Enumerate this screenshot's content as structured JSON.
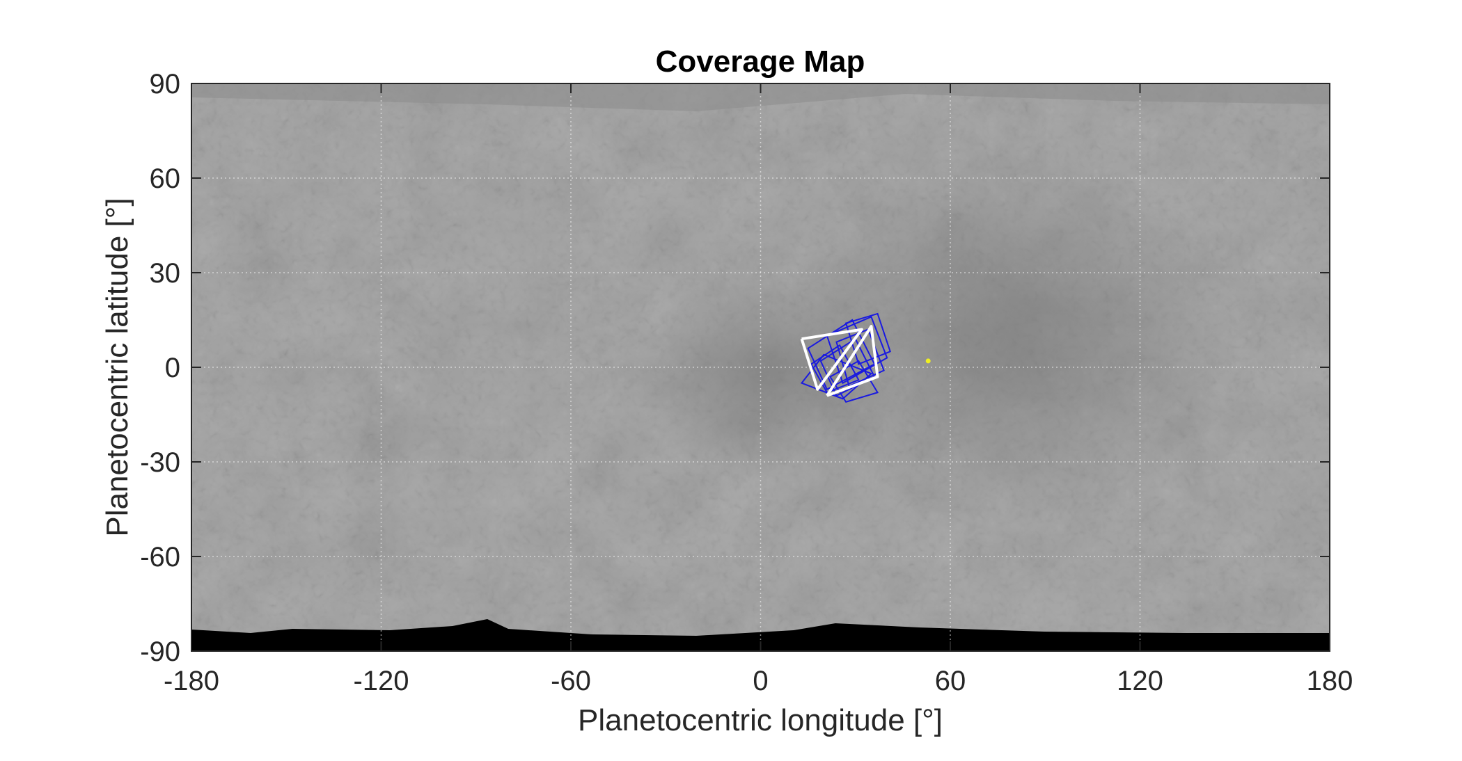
{
  "chart_data": {
    "type": "scatter",
    "title": "Coverage Map",
    "xlabel": "Planetocentric longitude [°]",
    "ylabel": "Planetocentric latitude [°]",
    "xlim": [
      -180,
      180
    ],
    "ylim": [
      -90,
      90
    ],
    "xticks": [
      "-180",
      "-120",
      "-60",
      "0",
      "60",
      "120",
      "180"
    ],
    "yticks": [
      "90",
      "60",
      "30",
      "0",
      "-30",
      "-60",
      "-90"
    ],
    "xtick_values": [
      -180,
      -120,
      -60,
      0,
      60,
      120,
      180
    ],
    "ytick_values": [
      90,
      60,
      30,
      0,
      -30,
      -60,
      -90
    ],
    "grid": true,
    "background": "grayscale planetary basemap",
    "footprint_color": "#1a1ae0",
    "outline_color": "#ffffff",
    "point_color": "#f0f020",
    "footprints": [
      [
        [
          15,
          6
        ],
        [
          29,
          15
        ],
        [
          36,
          1
        ],
        [
          21,
          -7
        ]
      ],
      [
        [
          21,
          10
        ],
        [
          35,
          16
        ],
        [
          40,
          3
        ],
        [
          26,
          -5
        ]
      ],
      [
        [
          13,
          -5
        ],
        [
          20,
          4
        ],
        [
          35,
          -2
        ],
        [
          26,
          -10
        ]
      ],
      [
        [
          19,
          2
        ],
        [
          30,
          9
        ],
        [
          36,
          -3
        ],
        [
          24,
          -9
        ]
      ],
      [
        [
          24,
          8
        ],
        [
          34,
          12
        ],
        [
          39,
          -1
        ],
        [
          28,
          -6
        ]
      ],
      [
        [
          16,
          1
        ],
        [
          25,
          7
        ],
        [
          31,
          -4
        ],
        [
          21,
          -8
        ]
      ],
      [
        [
          27,
          14
        ],
        [
          37,
          17
        ],
        [
          41,
          5
        ],
        [
          31,
          1
        ]
      ],
      [
        [
          22,
          -3
        ],
        [
          31,
          2
        ],
        [
          37,
          -8
        ],
        [
          27,
          -11
        ]
      ]
    ],
    "outlines": [
      [
        [
          13,
          9
        ],
        [
          32,
          12
        ],
        [
          18,
          -7
        ],
        [
          13,
          9
        ]
      ],
      [
        [
          21,
          -9
        ],
        [
          35,
          13
        ],
        [
          37,
          -3
        ],
        [
          21,
          -9
        ]
      ]
    ],
    "points": [
      {
        "lon": 53,
        "lat": 2
      }
    ]
  }
}
